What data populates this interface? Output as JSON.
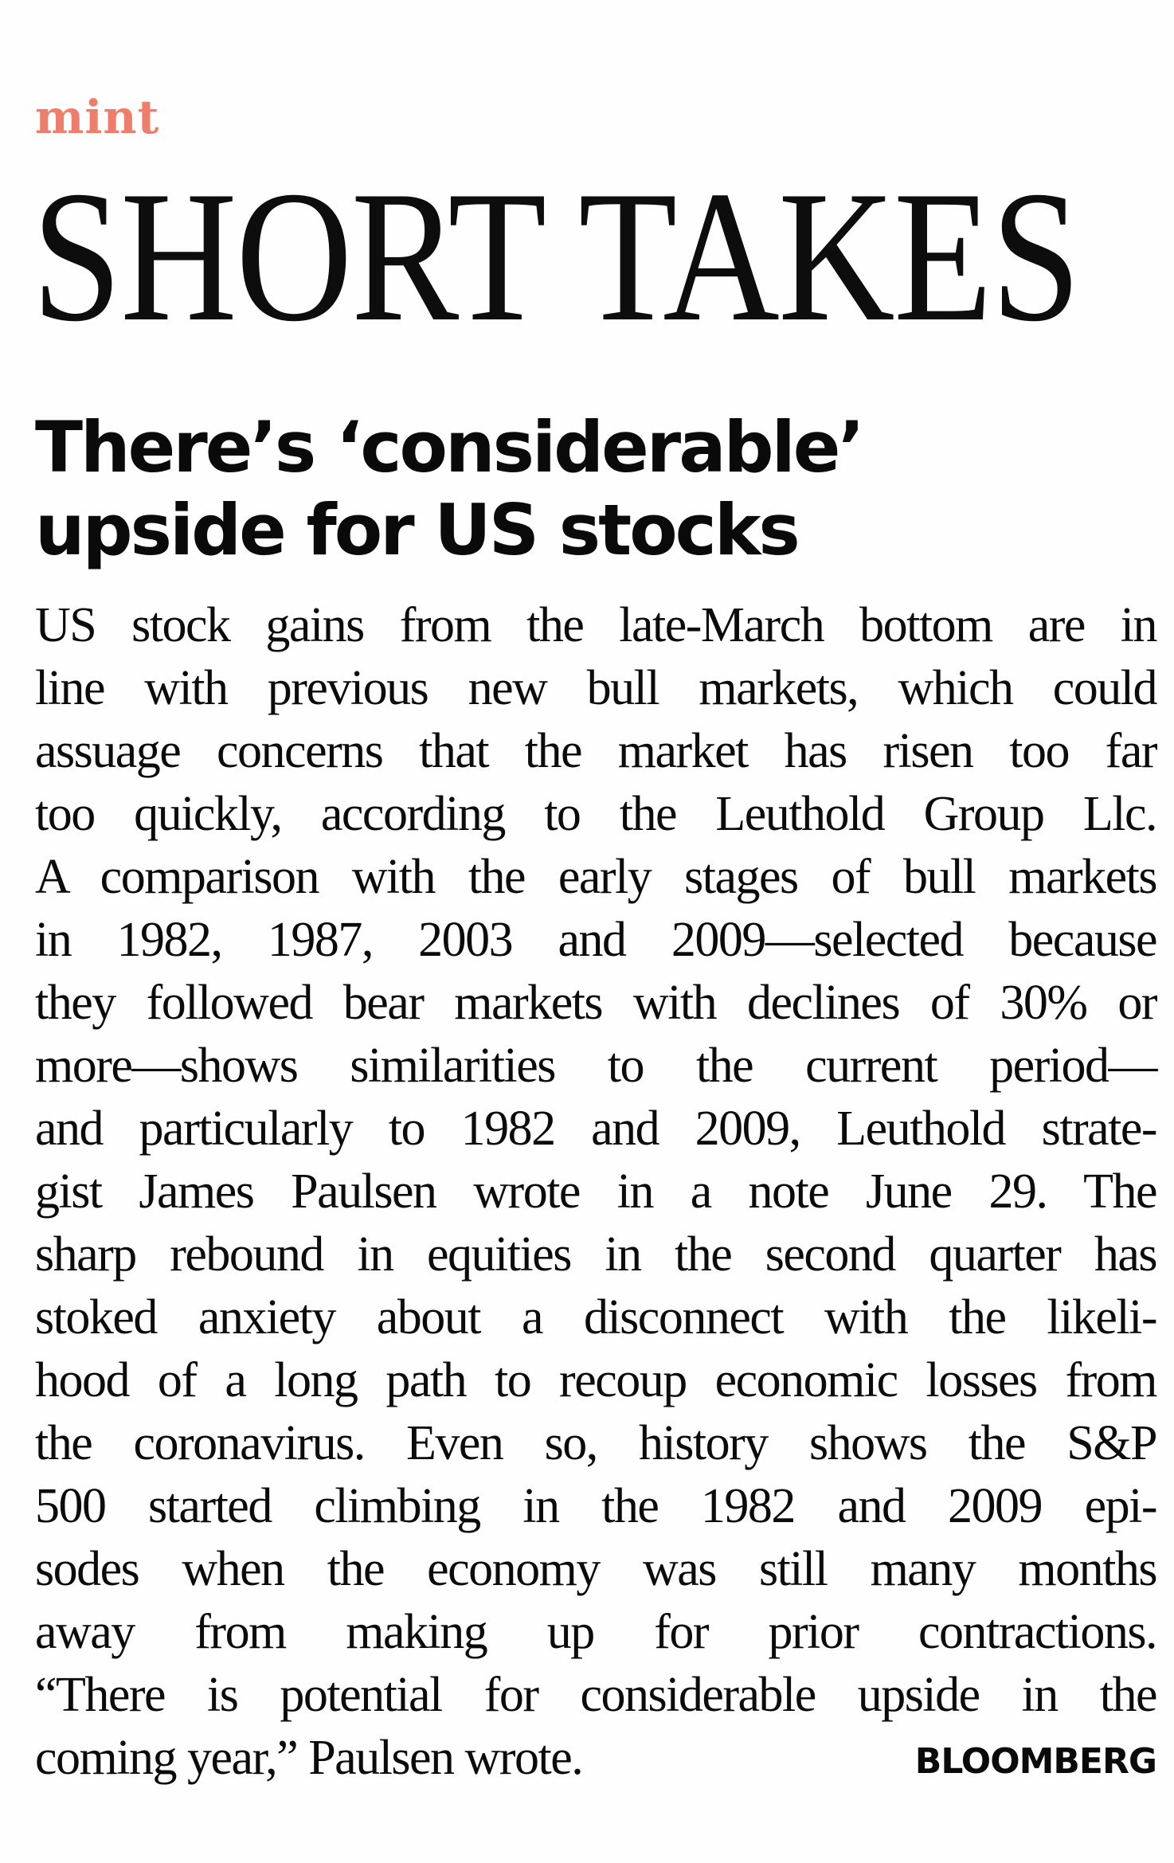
{
  "masthead": {
    "brand": "mint",
    "brand_color": "#ee7d6c",
    "section_title": "SHORT TAKES"
  },
  "article": {
    "headline_lines": [
      "There’s ‘considerable’",
      "upside for US stocks"
    ],
    "body_lines": [
      "US stock gains from the late-March bottom are in",
      "line with previous new bull markets, which could",
      "assuage concerns that the market has risen too far",
      "too quickly, according to the Leuthold Group Llc.",
      "A comparison with the early stages of bull markets",
      "in 1982, 1987, 2003 and 2009—selected because",
      "they followed bear markets with declines of 30% or",
      "more—shows similarities to the current period—",
      "and particularly to 1982 and 2009, Leuthold strate-",
      "gist James Paulsen wrote in a note June 29. The",
      "sharp rebound in equities in the second quarter has",
      "stoked anxiety about a disconnect with the likeli-",
      "hood of a long path to recoup economic losses from",
      "the coronavirus. Even so, history shows the S&P",
      "500 started climbing in the 1982 and 2009 epi-",
      "sodes when the economy was still many months",
      "away from making up for prior contractions.",
      "“There is potential for considerable upside in the",
      "coming year,” Paulsen wrote."
    ],
    "credit": "BLOOMBERG"
  }
}
